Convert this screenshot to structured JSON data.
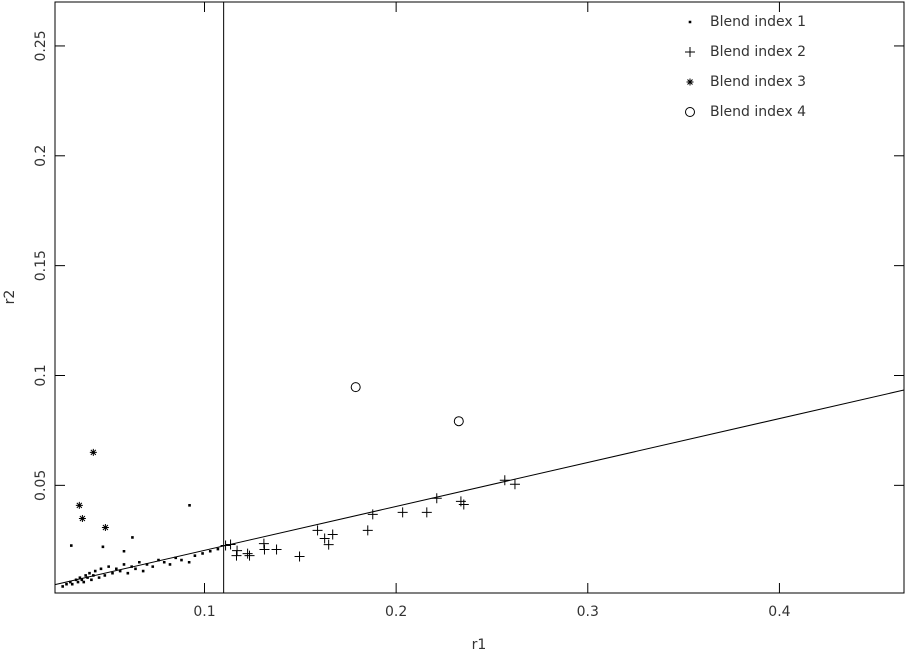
{
  "chart_data": {
    "type": "scatter",
    "x_label": "r1",
    "y_label": "r2",
    "xlim": [
      0.022,
      0.465
    ],
    "ylim": [
      0.001,
      0.27
    ],
    "xticks": [
      0.1,
      0.2,
      0.3,
      0.4
    ],
    "yticks": [
      0.05,
      0.1,
      0.15,
      0.2,
      0.25
    ],
    "legend": "upper right",
    "reference_lines": {
      "vertical_x": 0.11,
      "diagonal_x": [
        0.022,
        0.465
      ],
      "diagonal_y": [
        0.0048,
        0.0934
      ]
    },
    "series": [
      {
        "name": "Blend index 1",
        "marker": "dot",
        "color": "#000000",
        "x": [
          0.026,
          0.028,
          0.03,
          0.031,
          0.033,
          0.034,
          0.035,
          0.036,
          0.037,
          0.038,
          0.039,
          0.04,
          0.041,
          0.042,
          0.043,
          0.045,
          0.046,
          0.048,
          0.05,
          0.052,
          0.054,
          0.056,
          0.058,
          0.06,
          0.062,
          0.064,
          0.066,
          0.068,
          0.07,
          0.073,
          0.076,
          0.079,
          0.082,
          0.085,
          0.088,
          0.092,
          0.095,
          0.099,
          0.103,
          0.107,
          0.0305,
          0.0624,
          0.0922,
          0.047,
          0.058
        ],
        "values": [
          0.004,
          0.005,
          0.006,
          0.005,
          0.007,
          0.006,
          0.008,
          0.007,
          0.006,
          0.009,
          0.008,
          0.01,
          0.007,
          0.009,
          0.011,
          0.008,
          0.012,
          0.009,
          0.013,
          0.01,
          0.012,
          0.011,
          0.014,
          0.01,
          0.013,
          0.012,
          0.015,
          0.011,
          0.014,
          0.013,
          0.016,
          0.015,
          0.014,
          0.017,
          0.016,
          0.015,
          0.018,
          0.019,
          0.02,
          0.021,
          0.0226,
          0.0263,
          0.0409,
          0.022,
          0.02
        ]
      },
      {
        "name": "Blend index 2",
        "marker": "plus",
        "color": "#000000",
        "x": [
          0.111,
          0.1136,
          0.117,
          0.1167,
          0.1225,
          0.1235,
          0.131,
          0.1313,
          0.1376,
          0.1496,
          0.159,
          0.1627,
          0.1648,
          0.1669,
          0.1852,
          0.1878,
          0.2034,
          0.216,
          0.2212,
          0.2338,
          0.2353,
          0.2567,
          0.262
        ],
        "values": [
          0.0226,
          0.0231,
          0.0203,
          0.018,
          0.0189,
          0.018,
          0.0235,
          0.0208,
          0.0208,
          0.0176,
          0.0295,
          0.0258,
          0.023,
          0.0276,
          0.0295,
          0.0368,
          0.0377,
          0.0377,
          0.0441,
          0.0427,
          0.0413,
          0.0523,
          0.0505
        ]
      },
      {
        "name": "Blend index 3",
        "marker": "star",
        "color": "#000000",
        "x": [
          0.042,
          0.0347,
          0.0363,
          0.0483
        ],
        "values": [
          0.065,
          0.0409,
          0.0349,
          0.0308
        ]
      },
      {
        "name": "Blend index 4",
        "marker": "circle",
        "color": "#000000",
        "x": [
          0.1789,
          0.2327
        ],
        "values": [
          0.0947,
          0.0792
        ]
      }
    ]
  }
}
